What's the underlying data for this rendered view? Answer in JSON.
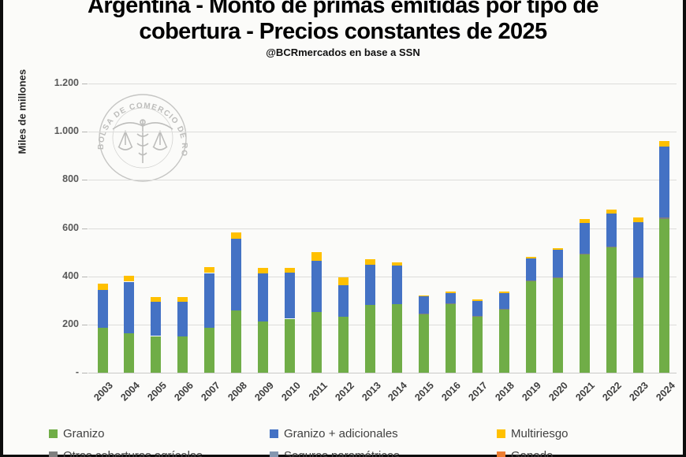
{
  "title": {
    "line1": "Argentina - Monto de primas emitidas  por tipo de",
    "line2": "cobertura - Precios constantes de 2025",
    "subtitle": "@BCRmercados en base a SSN"
  },
  "y_axis": {
    "label": "Miles de millones",
    "ticks": [
      {
        "label": "1.200",
        "value": 1200
      },
      {
        "label": "1.000",
        "value": 1000
      },
      {
        "label": "800",
        "value": 800
      },
      {
        "label": "600",
        "value": 600
      },
      {
        "label": "400",
        "value": 400
      },
      {
        "label": "200",
        "value": 200
      },
      {
        "label": "-",
        "value": 0
      }
    ]
  },
  "watermark": {
    "seal_text": "BOLSA DE COMERCIO DE ROSARIO",
    "color": "#a9a9a7"
  },
  "legend": {
    "rows": [
      [
        {
          "label": "Granizo",
          "color": "#70AD47"
        },
        {
          "label": "Granizo + adicionales",
          "color": "#4472C4"
        },
        {
          "label": "Multiriesgo",
          "color": "#FFC000"
        }
      ],
      [
        {
          "label": "Otras coberturas agrícolas",
          "color": "#7F7F7F"
        },
        {
          "label": "Seguros paramétricos",
          "color": "#8497B0"
        },
        {
          "label": "Ganado",
          "color": "#ED7D31"
        }
      ]
    ]
  },
  "chart_data": {
    "type": "bar",
    "stacked": true,
    "title": "Argentina - Monto de primas emitidas por tipo de cobertura - Precios constantes de 2025",
    "source_note": "@BCRmercados en base a SSN",
    "xlabel": "",
    "ylabel": "Miles de millones",
    "ylim": [
      0,
      1200
    ],
    "grid": true,
    "legend_position": "bottom",
    "categories": [
      2003,
      2004,
      2005,
      2006,
      2007,
      2008,
      2009,
      2010,
      2011,
      2012,
      2013,
      2014,
      2015,
      2016,
      2017,
      2018,
      2019,
      2020,
      2021,
      2022,
      2023,
      2024
    ],
    "series": [
      {
        "name": "Granizo",
        "color": "#70AD47",
        "values": [
          185,
          165,
          152,
          150,
          186,
          258,
          213,
          223,
          253,
          231,
          281,
          285,
          243,
          283,
          232,
          263,
          378,
          391,
          491,
          520,
          391,
          640
        ]
      },
      {
        "name": "Otras coberturas agrícolas",
        "color": "#7F7F7F",
        "values": [
          0,
          0,
          0,
          0,
          0,
          0,
          0,
          0,
          0,
          0,
          0,
          0,
          3,
          4,
          3,
          3,
          4,
          4,
          4,
          4,
          4,
          5
        ]
      },
      {
        "name": "Granizo + adicionales",
        "color": "#4472C4",
        "values": [
          158,
          212,
          145,
          147,
          227,
          300,
          200,
          191,
          211,
          131,
          168,
          160,
          72,
          46,
          62,
          65,
          93,
          115,
          127,
          136,
          232,
          293
        ]
      },
      {
        "name": "Seguros paramétricos",
        "color": "#8497B0",
        "values": [
          0,
          0,
          0,
          0,
          0,
          0,
          0,
          0,
          0,
          0,
          0,
          0,
          0,
          0,
          0,
          0,
          0,
          0,
          0,
          0,
          0,
          0
        ]
      },
      {
        "name": "Multiriesgo",
        "color": "#FFC000",
        "values": [
          27,
          24,
          18,
          18,
          24,
          25,
          22,
          20,
          36,
          33,
          22,
          13,
          2,
          5,
          8,
          7,
          5,
          8,
          17,
          16,
          18,
          22
        ]
      },
      {
        "name": "Ganado",
        "color": "#ED7D31",
        "values": [
          0,
          0,
          0,
          0,
          0,
          0,
          0,
          0,
          0,
          0,
          0,
          0,
          0,
          0,
          0,
          0,
          0,
          0,
          0,
          0,
          0,
          0
        ]
      }
    ]
  }
}
